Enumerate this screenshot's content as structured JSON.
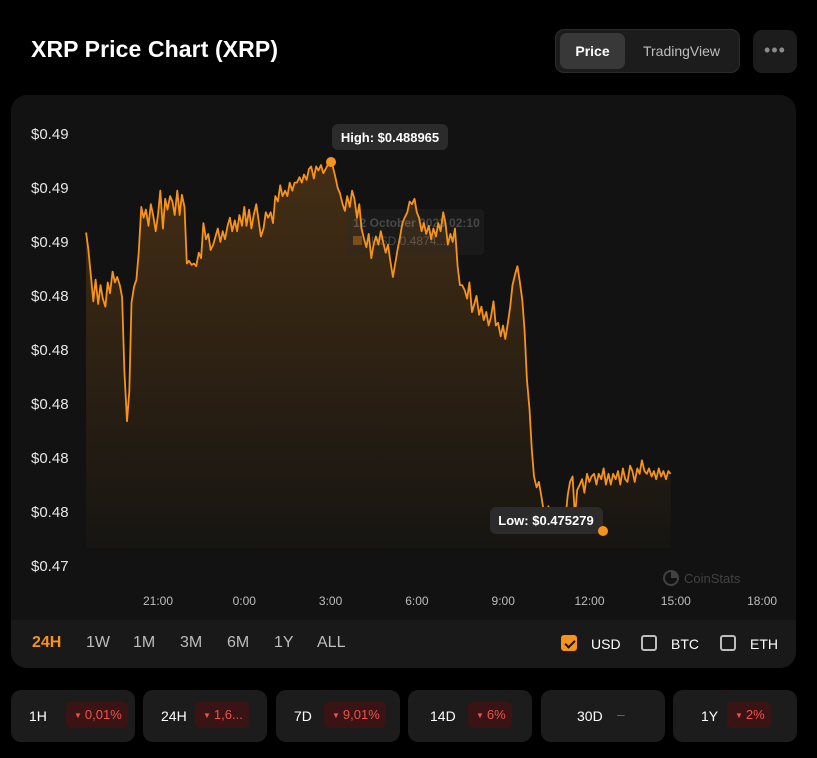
{
  "header": {
    "title": "XRP Price Chart (XRP)",
    "toggle": [
      "Price",
      "TradingView"
    ],
    "active_toggle": "Price",
    "more_icon": "more-horizontal-icon"
  },
  "colors": {
    "accent": "#f7931a",
    "negative": "#f0504e",
    "background": "#000000",
    "card": "#121212"
  },
  "chart_data": {
    "type": "area",
    "y_tick_labels": [
      "$0.49",
      "$0.49",
      "$0.49",
      "$0.48",
      "$0.48",
      "$0.48",
      "$0.48",
      "$0.48",
      "$0.47"
    ],
    "x_tick_labels": [
      "21:00",
      "0:00",
      "3:00",
      "6:00",
      "9:00",
      "12:00",
      "15:00",
      "18:00"
    ],
    "high_label": "High: $0.488965",
    "low_label": "Low: $0.475279",
    "high": 0.488965,
    "low": 0.475279,
    "tooltip": {
      "date": "12 October 2023 02:10",
      "value": "USD 0.4874..."
    },
    "watermark": "CoinStats",
    "points": [
      [
        18.5,
        0.48635
      ],
      [
        18.58,
        0.4857
      ],
      [
        18.67,
        0.4847
      ],
      [
        18.75,
        0.4838
      ],
      [
        18.83,
        0.4846
      ],
      [
        18.92,
        0.4837
      ],
      [
        19.0,
        0.4844
      ],
      [
        19.08,
        0.4839
      ],
      [
        19.17,
        0.4836
      ],
      [
        19.25,
        0.4845
      ],
      [
        19.33,
        0.4841
      ],
      [
        19.42,
        0.4849
      ],
      [
        19.5,
        0.4845
      ],
      [
        19.58,
        0.4847
      ],
      [
        19.67,
        0.4844
      ],
      [
        19.75,
        0.48395
      ],
      [
        19.83,
        0.4812
      ],
      [
        19.92,
        0.47935
      ],
      [
        20.0,
        0.48045
      ],
      [
        20.08,
        0.48375
      ],
      [
        20.17,
        0.48435
      ],
      [
        20.25,
        0.4846
      ],
      [
        20.33,
        0.4856
      ],
      [
        20.42,
        0.4873
      ],
      [
        20.5,
        0.4869
      ],
      [
        20.58,
        0.4872
      ],
      [
        20.67,
        0.4866
      ],
      [
        20.75,
        0.4874
      ],
      [
        20.83,
        0.487
      ],
      [
        20.92,
        0.4864
      ],
      [
        21.0,
        0.487
      ],
      [
        21.08,
        0.4879
      ],
      [
        21.17,
        0.4865
      ],
      [
        21.25,
        0.4876
      ],
      [
        21.33,
        0.4872
      ],
      [
        21.42,
        0.4877
      ],
      [
        21.5,
        0.4875
      ],
      [
        21.58,
        0.487
      ],
      [
        21.67,
        0.4879
      ],
      [
        21.75,
        0.487
      ],
      [
        21.83,
        0.48775
      ],
      [
        21.92,
        0.4873
      ],
      [
        22.0,
        0.4852
      ],
      [
        22.08,
        0.4853
      ],
      [
        22.17,
        0.48515
      ],
      [
        22.25,
        0.4852
      ],
      [
        22.33,
        0.4851
      ],
      [
        22.42,
        0.4856
      ],
      [
        22.5,
        0.4854
      ],
      [
        22.58,
        0.4867
      ],
      [
        22.67,
        0.4861
      ],
      [
        22.75,
        0.4863
      ],
      [
        22.83,
        0.4857
      ],
      [
        22.92,
        0.4859
      ],
      [
        23.0,
        0.4862
      ],
      [
        23.08,
        0.4865
      ],
      [
        23.17,
        0.486
      ],
      [
        23.25,
        0.4864
      ],
      [
        23.33,
        0.4861
      ],
      [
        23.42,
        0.4866
      ],
      [
        23.5,
        0.4869
      ],
      [
        23.58,
        0.4864
      ],
      [
        23.67,
        0.4868
      ],
      [
        23.75,
        0.4864
      ],
      [
        23.83,
        0.487
      ],
      [
        23.92,
        0.4866
      ],
      [
        24.0,
        0.4873
      ],
      [
        24.08,
        0.4866
      ],
      [
        24.17,
        0.4872
      ],
      [
        24.25,
        0.4865
      ],
      [
        24.33,
        0.487
      ],
      [
        24.42,
        0.4874
      ],
      [
        24.5,
        0.4868
      ],
      [
        24.58,
        0.4862
      ],
      [
        24.67,
        0.4865
      ],
      [
        24.75,
        0.4871
      ],
      [
        24.83,
        0.4869
      ],
      [
        24.92,
        0.4871
      ],
      [
        25.0,
        0.4867
      ],
      [
        25.08,
        0.4877
      ],
      [
        25.17,
        0.4875
      ],
      [
        25.25,
        0.4881
      ],
      [
        25.33,
        0.4877
      ],
      [
        25.42,
        0.4879
      ],
      [
        25.5,
        0.4877
      ],
      [
        25.58,
        0.4882
      ],
      [
        25.67,
        0.4879
      ],
      [
        25.75,
        0.4882
      ],
      [
        25.83,
        0.4882
      ],
      [
        25.92,
        0.4884
      ],
      [
        26.0,
        0.4882
      ],
      [
        26.08,
        0.4885
      ],
      [
        26.17,
        0.4883
      ],
      [
        26.25,
        0.4887
      ],
      [
        26.33,
        0.4888
      ],
      [
        26.42,
        0.48835
      ],
      [
        26.5,
        0.4888
      ],
      [
        26.58,
        0.48865
      ],
      [
        26.67,
        0.48885
      ],
      [
        26.75,
        0.48855
      ],
      [
        26.83,
        0.4887
      ],
      [
        26.92,
        0.4889
      ],
      [
        27.0,
        0.48898
      ],
      [
        27.08,
        0.4888
      ],
      [
        27.17,
        0.4884
      ],
      [
        27.25,
        0.488
      ],
      [
        27.33,
        0.4878
      ],
      [
        27.42,
        0.4874
      ],
      [
        27.5,
        0.48715
      ],
      [
        27.58,
        0.4877
      ],
      [
        27.67,
        0.4873
      ],
      [
        27.75,
        0.4879
      ],
      [
        27.83,
        0.4876
      ],
      [
        27.92,
        0.4869
      ],
      [
        28.0,
        0.4874
      ],
      [
        28.08,
        0.4865
      ],
      [
        28.17,
        0.4861
      ],
      [
        28.25,
        0.4858
      ],
      [
        28.33,
        0.4863
      ],
      [
        28.42,
        0.4854
      ],
      [
        28.5,
        0.4859
      ],
      [
        28.58,
        0.4862
      ],
      [
        28.67,
        0.4859
      ],
      [
        28.75,
        0.4864
      ],
      [
        28.83,
        0.486
      ],
      [
        28.92,
        0.4856
      ],
      [
        29.0,
        0.4859
      ],
      [
        29.08,
        0.4853
      ],
      [
        29.17,
        0.4847
      ],
      [
        29.25,
        0.4852
      ],
      [
        29.33,
        0.4857
      ],
      [
        29.42,
        0.4862
      ],
      [
        29.5,
        0.4867
      ],
      [
        29.58,
        0.4869
      ],
      [
        29.67,
        0.4871
      ],
      [
        29.75,
        0.4875
      ],
      [
        29.83,
        0.4874
      ],
      [
        29.92,
        0.4876
      ],
      [
        30.0,
        0.4871
      ],
      [
        30.08,
        0.4869
      ],
      [
        30.17,
        0.4864
      ],
      [
        30.25,
        0.4867
      ],
      [
        30.33,
        0.4863
      ],
      [
        30.42,
        0.4866
      ],
      [
        30.5,
        0.4861
      ],
      [
        30.58,
        0.4865
      ],
      [
        30.67,
        0.4862
      ],
      [
        30.75,
        0.4867
      ],
      [
        30.83,
        0.4864
      ],
      [
        30.92,
        0.4871
      ],
      [
        31.0,
        0.4867
      ],
      [
        31.08,
        0.4859
      ],
      [
        31.17,
        0.4863
      ],
      [
        31.25,
        0.486
      ],
      [
        31.33,
        0.4865
      ],
      [
        31.42,
        0.4851
      ],
      [
        31.5,
        0.4844
      ],
      [
        31.58,
        0.4844
      ],
      [
        31.67,
        0.4842
      ],
      [
        31.75,
        0.4839
      ],
      [
        31.83,
        0.4845
      ],
      [
        31.92,
        0.4834
      ],
      [
        32.0,
        0.4837
      ],
      [
        32.08,
        0.484
      ],
      [
        32.17,
        0.4833
      ],
      [
        32.25,
        0.4836
      ],
      [
        32.33,
        0.4831
      ],
      [
        32.42,
        0.4834
      ],
      [
        32.5,
        0.4829
      ],
      [
        32.58,
        0.4832
      ],
      [
        32.67,
        0.4838
      ],
      [
        32.75,
        0.4829
      ],
      [
        32.83,
        0.483
      ],
      [
        32.92,
        0.4825
      ],
      [
        33.0,
        0.4829
      ],
      [
        33.08,
        0.4824
      ],
      [
        33.17,
        0.483
      ],
      [
        33.25,
        0.4836
      ],
      [
        33.33,
        0.4844
      ],
      [
        33.42,
        0.4848
      ],
      [
        33.5,
        0.4851
      ],
      [
        33.58,
        0.48455
      ],
      [
        33.67,
        0.48385
      ],
      [
        33.75,
        0.4827
      ],
      [
        33.83,
        0.4809
      ],
      [
        33.92,
        0.4798
      ],
      [
        34.0,
        0.4783
      ],
      [
        34.08,
        0.4773
      ],
      [
        34.17,
        0.4769
      ],
      [
        34.25,
        0.4771
      ],
      [
        34.33,
        0.4766
      ],
      [
        34.42,
        0.476
      ],
      [
        34.5,
        0.4757
      ],
      [
        34.58,
        0.4762
      ],
      [
        34.67,
        0.4757
      ],
      [
        34.75,
        0.4752
      ],
      [
        34.83,
        0.4755
      ],
      [
        34.92,
        0.476
      ],
      [
        35.0,
        0.4756
      ],
      [
        35.08,
        0.47528
      ],
      [
        35.17,
        0.4757
      ],
      [
        35.25,
        0.4766
      ],
      [
        35.33,
        0.4771
      ],
      [
        35.42,
        0.4773
      ],
      [
        35.5,
        0.4758
      ],
      [
        35.58,
        0.4768
      ],
      [
        35.67,
        0.477
      ],
      [
        35.75,
        0.4772
      ],
      [
        35.83,
        0.4767
      ],
      [
        35.92,
        0.4774
      ],
      [
        36.0,
        0.4771
      ],
      [
        36.08,
        0.4773
      ],
      [
        36.17,
        0.4774
      ],
      [
        36.25,
        0.477
      ],
      [
        36.33,
        0.4774
      ],
      [
        36.42,
        0.4772
      ],
      [
        36.5,
        0.4776
      ],
      [
        36.58,
        0.477
      ],
      [
        36.67,
        0.4774
      ],
      [
        36.75,
        0.477
      ],
      [
        36.83,
        0.4774
      ],
      [
        36.92,
        0.4772
      ],
      [
        37.0,
        0.4775
      ],
      [
        37.08,
        0.477
      ],
      [
        37.17,
        0.4776
      ],
      [
        37.25,
        0.4772
      ],
      [
        37.33,
        0.4771
      ],
      [
        37.42,
        0.4777
      ],
      [
        37.5,
        0.4775
      ],
      [
        37.58,
        0.4771
      ],
      [
        37.67,
        0.4776
      ],
      [
        37.75,
        0.4774
      ],
      [
        37.83,
        0.4779
      ],
      [
        37.92,
        0.4775
      ],
      [
        38.0,
        0.4774
      ],
      [
        38.08,
        0.4776
      ],
      [
        38.17,
        0.4773
      ],
      [
        38.25,
        0.4775
      ],
      [
        38.33,
        0.4772
      ],
      [
        38.42,
        0.4776
      ],
      [
        38.5,
        0.4773
      ],
      [
        38.58,
        0.4775
      ],
      [
        38.67,
        0.4772
      ],
      [
        38.75,
        0.4775
      ],
      [
        38.83,
        0.4774
      ]
    ]
  },
  "ranges": {
    "items": [
      "24H",
      "1W",
      "1M",
      "3M",
      "6M",
      "1Y",
      "ALL"
    ],
    "active": "24H"
  },
  "currencies": [
    {
      "label": "USD",
      "checked": true
    },
    {
      "label": "BTC",
      "checked": false
    },
    {
      "label": "ETH",
      "checked": false
    }
  ],
  "stats": [
    {
      "period": "1H",
      "change": "0,01%",
      "direction": "down"
    },
    {
      "period": "24H",
      "change": "1,6...",
      "direction": "down"
    },
    {
      "period": "7D",
      "change": "9,01%",
      "direction": "down"
    },
    {
      "period": "14D",
      "change": "6%",
      "direction": "down"
    },
    {
      "period": "30D",
      "change": "–",
      "direction": "none"
    },
    {
      "period": "1Y",
      "change": "2%",
      "direction": "down"
    }
  ]
}
